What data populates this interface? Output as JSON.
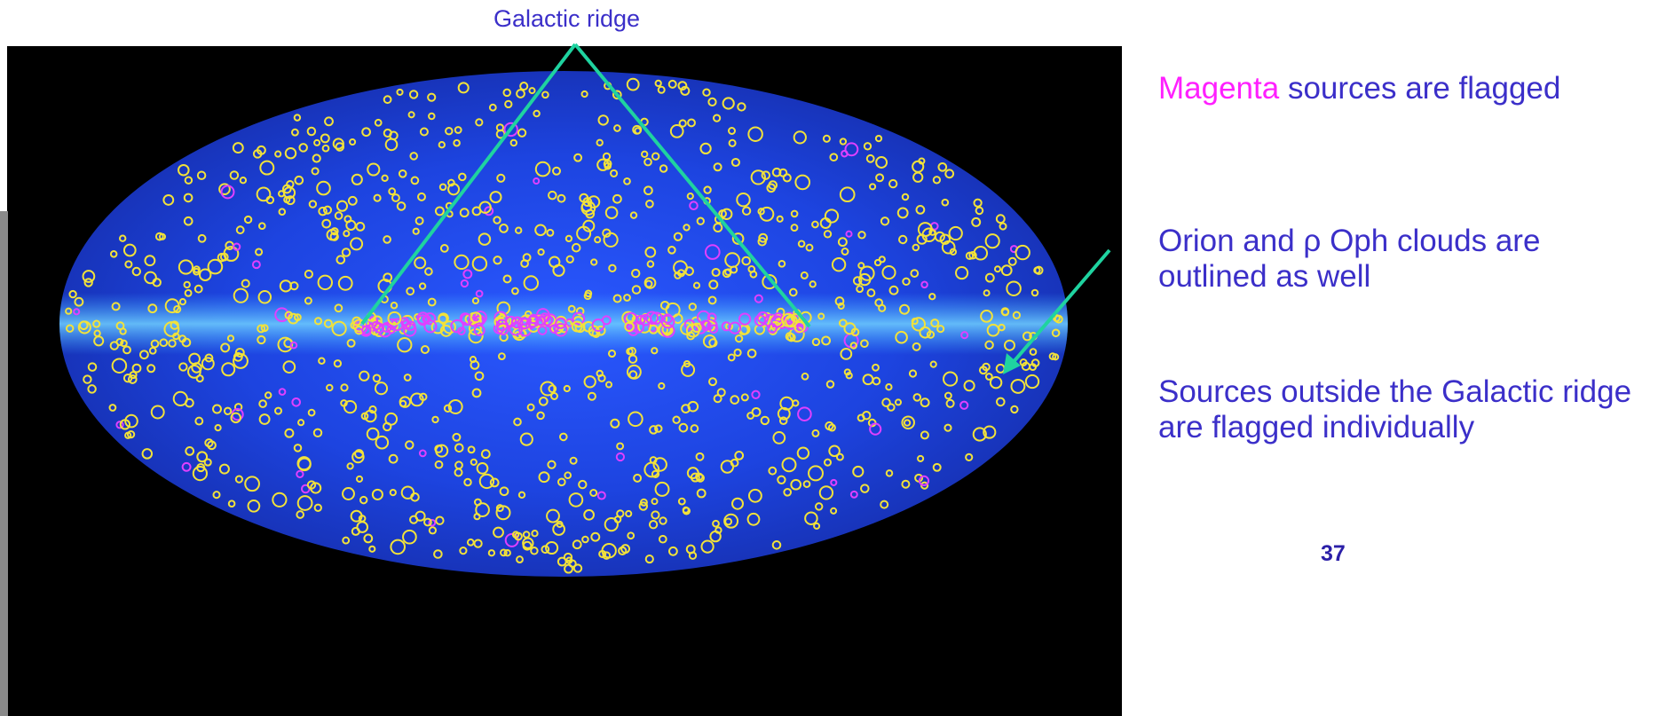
{
  "labels": {
    "galactic_ridge": "Galactic ridge",
    "flagged_word": "Magenta",
    "flagged_rest": " sources are flagged",
    "clouds_note": "Orion and ρ Oph clouds are outlined as well",
    "outside_note": "Sources outside the Galactic ridge are flagged individually",
    "slide_number": "37"
  },
  "colors": {
    "text": "#3b2fc9",
    "highlight": "#ff1fff",
    "pointer": "#1fd3a0",
    "source_normal": "#f2e23a",
    "source_flagged": "#e040ff",
    "sky_background": "#1a3fd0"
  },
  "image": {
    "description_icon": "all-sky-map-image"
  }
}
